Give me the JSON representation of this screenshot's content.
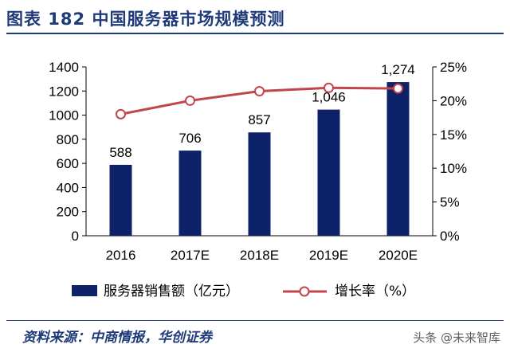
{
  "title": "图表 182    中国服务器市场规模预测",
  "source": "资料来源：中商情报，华创证券",
  "watermark": "头条 @未来智库",
  "colors": {
    "bar": "#0d2269",
    "line": "#c0464b",
    "axis": "#000000",
    "title": "#1f3a78"
  },
  "chart_data": {
    "type": "bar+line",
    "categories": [
      "2016",
      "2017E",
      "2018E",
      "2019E",
      "2020E"
    ],
    "series": [
      {
        "name": "服务器销售额（亿元）",
        "type": "bar",
        "axis": "left",
        "values": [
          588,
          706,
          857,
          1046,
          1274
        ],
        "labels": [
          "588",
          "706",
          "857",
          "1,046",
          "1,274"
        ]
      },
      {
        "name": "增长率（%）",
        "type": "line",
        "axis": "right",
        "values": [
          18,
          20,
          21.4,
          21.9,
          21.8
        ]
      }
    ],
    "y_left": {
      "min": 0,
      "max": 1400,
      "ticks": [
        0,
        200,
        400,
        600,
        800,
        1000,
        1200,
        1400
      ]
    },
    "y_right": {
      "min": 0,
      "max": 25,
      "ticks": [
        "0%",
        "5%",
        "10%",
        "15%",
        "20%",
        "25%"
      ]
    },
    "legend_position": "bottom"
  }
}
